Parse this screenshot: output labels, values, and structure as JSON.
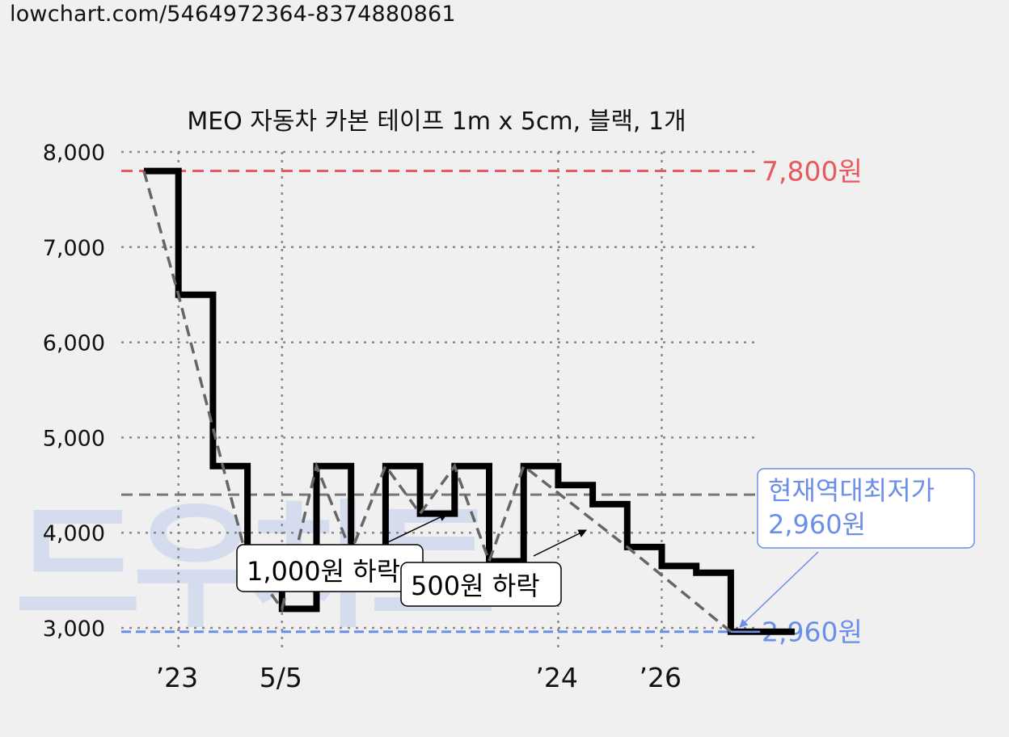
{
  "page": {
    "url_text": "lowchart.com/5464972364-8374880861",
    "watermark_text": "드우차트"
  },
  "chart_data": {
    "type": "line",
    "title": "MEO 자동차 카본 테이프 1m x 5cm, 블랙, 1개",
    "xlabel": "",
    "ylabel": "",
    "ylim": [
      3000,
      8000
    ],
    "y_ticks": [
      {
        "value": 3000,
        "label": "3,000"
      },
      {
        "value": 4000,
        "label": "4,000"
      },
      {
        "value": 5000,
        "label": "5,000"
      },
      {
        "value": 6000,
        "label": "6,000"
      },
      {
        "value": 7000,
        "label": "7,000"
      },
      {
        "value": 8000,
        "label": "8,000"
      }
    ],
    "x_ticks": [
      {
        "index": 1,
        "label": "’23",
        "muted": false
      },
      {
        "index": 4,
        "label": "5/5",
        "muted": true
      },
      {
        "index": 12,
        "label": "’24",
        "muted": false
      },
      {
        "index": 15,
        "label": "’26",
        "muted": false
      }
    ],
    "grid": true,
    "series": [
      {
        "style": "step",
        "color": "#000000",
        "values": [
          7800,
          6500,
          4700,
          3700,
          3200,
          4700,
          3800,
          4700,
          4200,
          4700,
          3700,
          4700,
          4500,
          4300,
          3850,
          3650,
          3580,
          2960,
          2960
        ]
      },
      {
        "style": "dashed-trend",
        "color": "#666666",
        "points": [
          {
            "index": 0,
            "value": 7800
          },
          {
            "index": 1,
            "value": 6500
          },
          {
            "index": 3,
            "value": 3700
          },
          {
            "index": 4,
            "value": 3200
          },
          {
            "index": 5,
            "value": 4700
          },
          {
            "index": 6,
            "value": 3800
          },
          {
            "index": 7,
            "value": 4700
          },
          {
            "index": 8,
            "value": 4200
          },
          {
            "index": 9,
            "value": 4700
          },
          {
            "index": 10,
            "value": 3700
          },
          {
            "index": 11,
            "value": 4700
          },
          {
            "index": 14,
            "value": 3850
          },
          {
            "index": 17,
            "value": 2960
          }
        ]
      }
    ],
    "reference_lines": [
      {
        "kind": "max",
        "value": 7800,
        "color": "#e8585c",
        "label": "7,800원"
      },
      {
        "kind": "average",
        "value": 4400,
        "color": "#777777",
        "label": ""
      },
      {
        "kind": "min",
        "value": 2960,
        "color": "#6b8ee8",
        "label": "2,960원"
      }
    ],
    "annotations": [
      {
        "text": "1,000원 하락",
        "color": "#000000"
      },
      {
        "text": "500원 하락",
        "color": "#000000"
      }
    ],
    "callout": {
      "lines": [
        "현재역대최저가",
        "2,960원"
      ],
      "color": "#6b8ee8"
    }
  }
}
